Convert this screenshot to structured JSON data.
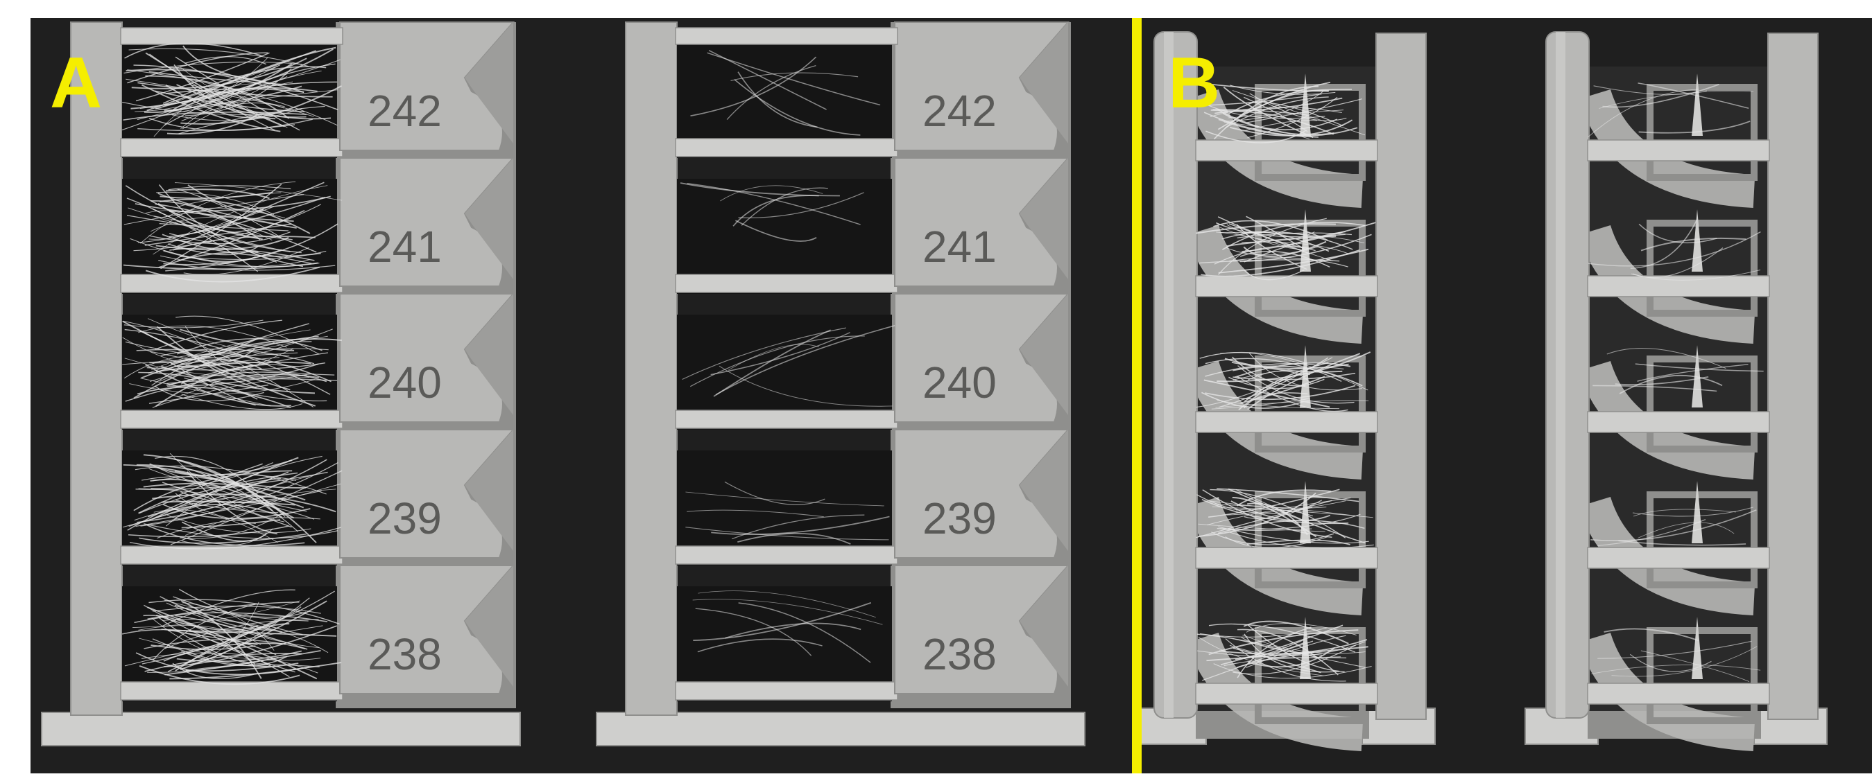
{
  "colors": {
    "background": "#1f1f1f",
    "print": "#b8b8b6",
    "print_shadow": "#8f8f8d",
    "print_light": "#cfcfcd",
    "label": "#f5ee00",
    "divider": "#f5ee00",
    "number_text": "#5a5a58",
    "strings": "#e6e6e6"
  },
  "panel_a": {
    "label": "A",
    "left_tower": {
      "numbers": [
        "242",
        "241",
        "240",
        "239",
        "238"
      ],
      "stringing": "heavy"
    },
    "right_tower": {
      "numbers": [
        "242",
        "241",
        "240",
        "239",
        "238"
      ],
      "stringing": "light"
    }
  },
  "panel_b": {
    "label": "B",
    "left_test": {
      "stringing": "heavy"
    },
    "right_test": {
      "stringing": "light"
    }
  }
}
